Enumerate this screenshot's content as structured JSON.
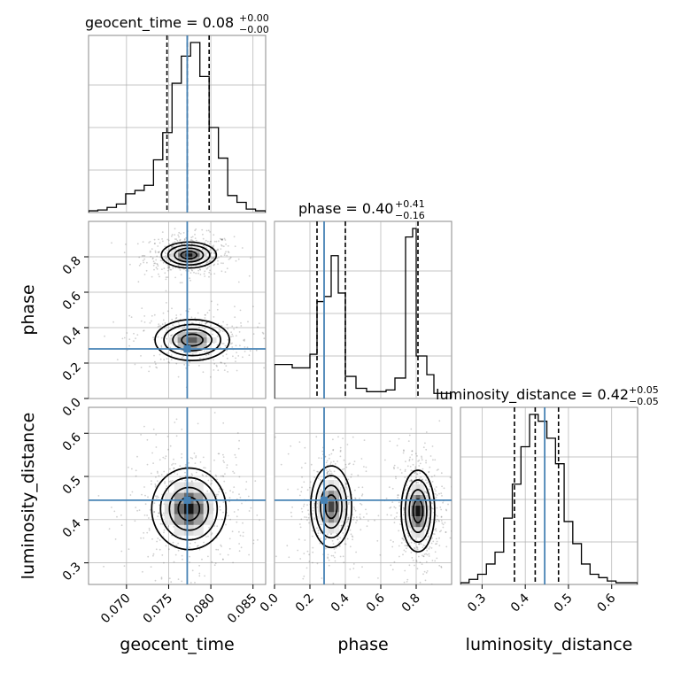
{
  "chart_data": {
    "type": "corner",
    "parameters": [
      "geocent_time",
      "phase",
      "luminosity_distance"
    ],
    "truths": [
      0.0772,
      0.28,
      0.445
    ],
    "colors": {
      "truth": "#4682b4",
      "hist": "#000000",
      "grid": "#b0b0b0",
      "points": "#555555"
    },
    "grid": true,
    "panels": {
      "geocent_time": {
        "title": {
          "text": "geocent_time = 0.08",
          "sup": "+0.00",
          "sub": "−0.00"
        },
        "range": [
          0.0655,
          0.0865
        ],
        "ticks": [
          0.07,
          0.075,
          0.08,
          0.085
        ],
        "tick_labels": [
          "0.070",
          "0.075",
          "0.080",
          "0.085"
        ],
        "quantiles": [
          0.0748,
          0.0772,
          0.0798
        ],
        "hist_bins": [
          0.0655,
          0.0666,
          0.0677,
          0.0688,
          0.0699,
          0.071,
          0.0721,
          0.0732,
          0.0743,
          0.0754,
          0.0765,
          0.0776,
          0.0787,
          0.0798,
          0.0809,
          0.082,
          0.0831,
          0.0842,
          0.0853,
          0.0865
        ],
        "hist_values": [
          0.01,
          0.015,
          0.03,
          0.05,
          0.11,
          0.13,
          0.16,
          0.31,
          0.47,
          0.76,
          0.92,
          1.0,
          0.8,
          0.5,
          0.32,
          0.1,
          0.06,
          0.02,
          0.01
        ]
      },
      "phase": {
        "title": {
          "text": "phase = 0.40",
          "sup": "+0.41",
          "sub": "−0.16"
        },
        "range": [
          0.0,
          1.0
        ],
        "ticks": [
          0.0,
          0.2,
          0.4,
          0.6,
          0.8
        ],
        "tick_labels": [
          "0.0",
          "0.2",
          "0.4",
          "0.6",
          "0.8"
        ],
        "quantiles": [
          0.24,
          0.4,
          0.81
        ],
        "hist_bins": [
          0.0,
          0.1,
          0.2,
          0.24,
          0.28,
          0.32,
          0.36,
          0.4,
          0.46,
          0.52,
          0.58,
          0.63,
          0.68,
          0.74,
          0.78,
          0.8,
          0.86,
          0.9,
          1.0
        ],
        "hist_values": [
          0.2,
          0.18,
          0.26,
          0.57,
          0.6,
          0.84,
          0.62,
          0.13,
          0.06,
          0.04,
          0.04,
          0.05,
          0.12,
          0.95,
          1.0,
          0.25,
          0.14,
          0.03
        ]
      },
      "luminosity_distance": {
        "title": {
          "text": "luminosity_distance = 0.42",
          "sup": "+0.05",
          "sub": "−0.05"
        },
        "range": [
          0.25,
          0.66
        ],
        "ticks": [
          0.3,
          0.4,
          0.5,
          0.6
        ],
        "tick_labels": [
          "0.3",
          "0.4",
          "0.5",
          "0.6"
        ],
        "quantiles": [
          0.375,
          0.423,
          0.477
        ],
        "hist_bins": [
          0.25,
          0.27,
          0.29,
          0.31,
          0.33,
          0.35,
          0.37,
          0.39,
          0.41,
          0.43,
          0.45,
          0.47,
          0.49,
          0.51,
          0.53,
          0.55,
          0.57,
          0.59,
          0.61,
          0.63,
          0.66
        ],
        "hist_values": [
          0.01,
          0.03,
          0.06,
          0.12,
          0.19,
          0.39,
          0.59,
          0.81,
          1.0,
          0.96,
          0.86,
          0.71,
          0.37,
          0.24,
          0.12,
          0.06,
          0.04,
          0.02,
          0.01,
          0.01
        ]
      }
    },
    "ylims": {
      "phase": [
        0.0,
        1.0
      ],
      "luminosity_distance": [
        0.25,
        0.66
      ]
    },
    "ytick_labels": {
      "phase": [
        "0.0",
        "0.2",
        "0.4",
        "0.6",
        "0.8"
      ],
      "luminosity_distance": [
        "0.3",
        "0.4",
        "0.5",
        "0.6"
      ]
    },
    "modes": {
      "geocent_time_vs_phase": [
        {
          "x": 0.0774,
          "y": 0.81,
          "sx": 0.00155,
          "sy": 0.035,
          "w": 1.0
        },
        {
          "x": 0.0778,
          "y": 0.33,
          "sx": 0.0021,
          "sy": 0.055,
          "w": 0.7
        }
      ],
      "geocent_time_vs_luminosity_distance": [
        {
          "x": 0.0774,
          "y": 0.425,
          "sx": 0.0021,
          "sy": 0.045,
          "w": 1.0
        }
      ],
      "phase_vs_luminosity_distance": [
        {
          "x": 0.32,
          "y": 0.43,
          "sx": 0.055,
          "sy": 0.045,
          "w": 0.8
        },
        {
          "x": 0.81,
          "y": 0.42,
          "sx": 0.045,
          "sy": 0.045,
          "w": 1.0
        }
      ]
    }
  }
}
